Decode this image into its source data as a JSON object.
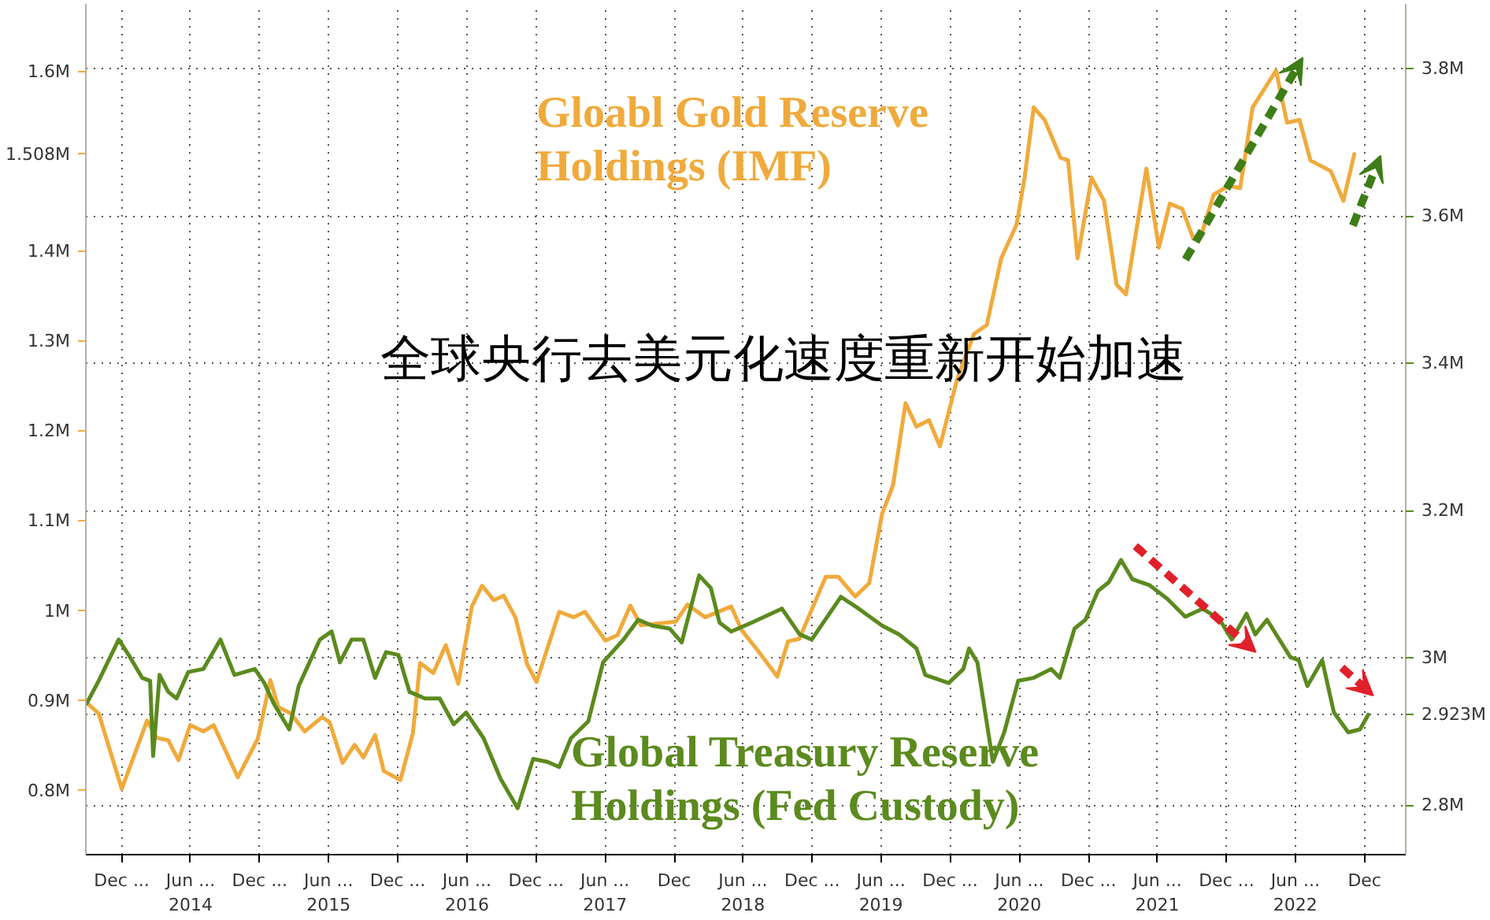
{
  "chart_data": {
    "type": "line",
    "annotations": [
      "全球央行去美元化速度重新开始加速"
    ],
    "xlim": [
      "2013-08-28",
      "2023-03-20"
    ],
    "xticks": [
      {
        "value": "2013-12-01",
        "label": "Dec ..."
      },
      {
        "value": "2014-06-01",
        "label": "Jun ...\n2014"
      },
      {
        "value": "2014-12-01",
        "label": "Dec ..."
      },
      {
        "value": "2015-06-01",
        "label": "Jun ...\n2015"
      },
      {
        "value": "2015-12-01",
        "label": "Dec ..."
      },
      {
        "value": "2016-06-01",
        "label": "Jun ...\n2016"
      },
      {
        "value": "2016-12-01",
        "label": "Dec ..."
      },
      {
        "value": "2017-06-01",
        "label": "Jun ...\n2017"
      },
      {
        "value": "2017-12-01",
        "label": "Dec"
      },
      {
        "value": "2018-06-01",
        "label": "Jun ...\n2018"
      },
      {
        "value": "2018-12-01",
        "label": "Dec ..."
      },
      {
        "value": "2019-06-01",
        "label": "Jun ...\n2019"
      },
      {
        "value": "2019-12-01",
        "label": "Dec ..."
      },
      {
        "value": "2020-06-01",
        "label": "Jun ...\n2020"
      },
      {
        "value": "2020-12-01",
        "label": "Dec ..."
      },
      {
        "value": "2021-06-01",
        "label": "Jun ...\n2021"
      },
      {
        "value": "2021-12-01",
        "label": "Dec ..."
      },
      {
        "value": "2022-06-01",
        "label": "Jun ...\n2022"
      },
      {
        "value": "2022-12-01",
        "label": "Dec"
      }
    ],
    "ylim": [
      0.729,
      1.675
    ],
    "yticks": [
      {
        "value": 0.8,
        "label": "0.8M"
      },
      {
        "value": 0.9,
        "label": "0.9M"
      },
      {
        "value": 1.0,
        "label": "1M"
      },
      {
        "value": 1.1,
        "label": "1.1M"
      },
      {
        "value": 1.2,
        "label": "1.2M"
      },
      {
        "value": 1.3,
        "label": "1.3M"
      },
      {
        "value": 1.4,
        "label": "1.4M"
      },
      {
        "value": 1.508,
        "label": "1.508M"
      },
      {
        "value": 1.6,
        "label": "1.6M"
      }
    ],
    "y2lim": [
      2.733,
      3.888
    ],
    "y2ticks": [
      {
        "value": 2.8,
        "label": "2.8M"
      },
      {
        "value": 2.923,
        "label": "2.923M"
      },
      {
        "value": 3.0,
        "label": "3M"
      },
      {
        "value": 3.2,
        "label": "3.2M"
      },
      {
        "value": 3.4,
        "label": "3.4M"
      },
      {
        "value": 3.6,
        "label": "3.6M"
      },
      {
        "value": 3.8,
        "label": "3.8M"
      }
    ],
    "grid": true,
    "line_style": "solid",
    "series": [
      {
        "name": "Gloabl Gold Reserve Holdings (IMF)",
        "color": "#f0aa3c",
        "x": [
          "2013-08-30",
          "2013-10-01",
          "2013-12-01",
          "2014-02-06",
          "2014-03-03",
          "2014-04-03",
          "2014-04-30",
          "2014-05-31",
          "2014-07-05",
          "2014-08-01",
          "2014-10-04",
          "2014-11-26",
          "2014-12-29",
          "2015-01-19",
          "2015-02-21",
          "2015-03-30",
          "2015-05-15",
          "2015-06-04",
          "2015-07-08",
          "2015-08-09",
          "2015-09-01",
          "2015-10-02",
          "2015-10-25",
          "2015-12-08",
          "2016-01-10",
          "2016-01-29",
          "2016-03-04",
          "2016-04-06",
          "2016-05-09",
          "2016-06-14",
          "2016-07-11",
          "2016-08-11",
          "2016-09-06",
          "2016-10-07",
          "2016-11-07",
          "2016-12-02",
          "2017-01-31",
          "2017-03-11",
          "2017-04-09",
          "2017-06-02",
          "2017-07-04",
          "2017-08-07",
          "2017-09-04",
          "2017-12-05",
          "2018-01-05",
          "2018-02-21",
          "2018-05-01",
          "2018-05-28",
          "2018-07-12",
          "2018-08-31",
          "2018-09-28",
          "2018-10-28",
          "2019-01-06",
          "2019-02-08",
          "2019-03-25",
          "2019-05-01",
          "2019-06-04",
          "2019-07-03",
          "2019-08-05",
          "2019-09-03",
          "2019-10-06",
          "2019-11-04",
          "2019-12-19",
          "2020-02-02",
          "2020-03-07",
          "2020-04-14",
          "2020-05-25",
          "2020-06-15",
          "2020-07-09",
          "2020-08-07",
          "2020-09-18",
          "2020-10-08",
          "2020-11-02",
          "2020-12-09",
          "2021-01-11",
          "2021-02-13",
          "2021-03-10",
          "2021-05-03",
          "2021-06-05",
          "2021-07-04",
          "2021-08-06",
          "2021-09-04",
          "2021-09-29",
          "2021-10-28",
          "2021-12-08",
          "2022-01-06",
          "2022-02-08",
          "2022-04-11",
          "2022-05-10",
          "2022-06-12",
          "2022-07-11",
          "2022-09-03",
          "2022-10-06",
          "2022-11-04"
        ],
        "values": [
          0.898,
          0.886,
          0.802,
          0.878,
          0.859,
          0.856,
          0.834,
          0.873,
          0.866,
          0.873,
          0.815,
          0.858,
          0.923,
          0.893,
          0.886,
          0.866,
          0.882,
          0.876,
          0.831,
          0.851,
          0.837,
          0.862,
          0.822,
          0.812,
          0.864,
          0.942,
          0.931,
          0.962,
          0.919,
          1.005,
          1.028,
          1.012,
          1.017,
          0.993,
          0.941,
          0.921,
          0.999,
          0.993,
          0.999,
          0.967,
          0.973,
          1.006,
          0.984,
          0.988,
          1.007,
          0.993,
          1.005,
          0.979,
          0.955,
          0.927,
          0.966,
          0.969,
          1.038,
          1.038,
          1.016,
          1.031,
          1.108,
          1.14,
          1.231,
          1.205,
          1.212,
          1.183,
          1.257,
          1.308,
          1.318,
          1.392,
          1.43,
          1.482,
          1.56,
          1.546,
          1.504,
          1.501,
          1.392,
          1.482,
          1.456,
          1.363,
          1.352,
          1.492,
          1.404,
          1.453,
          1.447,
          1.414,
          1.423,
          1.463,
          1.473,
          1.47,
          1.56,
          1.601,
          1.543,
          1.546,
          1.501,
          1.489,
          1.456,
          1.508
        ]
      },
      {
        "name": "Global Treasury Reserve Holdings (Fed Custody)",
        "color": "#5b8a1e",
        "axis": "y2",
        "x": [
          "2013-08-30",
          "2013-10-01",
          "2013-11-23",
          "2013-12-23",
          "2014-01-24",
          "2014-02-14",
          "2014-02-22",
          "2014-03-11",
          "2014-04-03",
          "2014-04-25",
          "2014-05-26",
          "2014-07-05",
          "2014-08-19",
          "2014-09-25",
          "2014-11-18",
          "2014-12-13",
          "2015-01-07",
          "2015-02-17",
          "2015-03-14",
          "2015-05-09",
          "2015-06-09",
          "2015-07-01",
          "2015-08-01",
          "2015-09-01",
          "2015-10-02",
          "2015-10-31",
          "2015-12-03",
          "2016-01-01",
          "2016-02-11",
          "2016-03-21",
          "2016-04-27",
          "2016-05-30",
          "2016-07-15",
          "2016-08-29",
          "2016-10-13",
          "2016-11-23",
          "2016-12-31",
          "2017-01-31",
          "2017-03-03",
          "2017-04-18",
          "2017-05-27",
          "2017-07-20",
          "2017-08-28",
          "2017-10-04",
          "2017-11-19",
          "2017-12-21",
          "2018-02-05",
          "2018-03-08",
          "2018-03-31",
          "2018-05-01",
          "2018-06-24",
          "2018-09-12",
          "2018-10-29",
          "2018-11-30",
          "2019-02-15",
          "2019-04-03",
          "2019-06-04",
          "2019-07-19",
          "2019-09-03",
          "2019-09-26",
          "2019-11-27",
          "2020-01-05",
          "2020-01-20",
          "2020-02-11",
          "2020-03-23",
          "2020-04-22",
          "2020-05-29",
          "2020-07-09",
          "2020-08-24",
          "2020-09-16",
          "2020-10-25",
          "2020-11-23",
          "2020-12-26",
          "2021-01-24",
          "2021-02-25",
          "2021-03-27",
          "2021-05-11",
          "2021-06-28",
          "2021-08-14",
          "2021-09-29",
          "2021-11-13",
          "2021-12-15",
          "2022-01-23",
          "2022-02-15",
          "2022-03-18",
          "2022-05-19",
          "2022-06-10",
          "2022-07-03",
          "2022-08-11",
          "2022-09-11",
          "2022-10-19",
          "2022-11-19",
          "2022-12-11"
        ],
        "values": [
          2.938,
          2.969,
          3.025,
          3.001,
          2.973,
          2.969,
          2.867,
          2.977,
          2.954,
          2.945,
          2.981,
          2.985,
          3.025,
          2.977,
          2.985,
          2.966,
          2.938,
          2.903,
          2.962,
          3.025,
          3.036,
          2.994,
          3.025,
          3.025,
          2.973,
          3.008,
          3.004,
          2.954,
          2.945,
          2.945,
          2.91,
          2.926,
          2.891,
          2.836,
          2.796,
          2.863,
          2.859,
          2.852,
          2.891,
          2.914,
          2.994,
          3.025,
          3.052,
          3.044,
          3.04,
          3.021,
          3.112,
          3.095,
          3.048,
          3.036,
          3.048,
          3.067,
          3.032,
          3.025,
          3.083,
          3.067,
          3.044,
          3.032,
          3.013,
          2.977,
          2.966,
          2.985,
          3.013,
          2.994,
          2.859,
          2.899,
          2.969,
          2.973,
          2.985,
          2.973,
          3.04,
          3.052,
          3.091,
          3.103,
          3.133,
          3.107,
          3.099,
          3.08,
          3.056,
          3.067,
          3.052,
          3.025,
          3.06,
          3.032,
          3.052,
          3.001,
          2.997,
          2.962,
          2.997,
          2.926,
          2.899,
          2.903,
          2.923
        ]
      }
    ]
  }
}
